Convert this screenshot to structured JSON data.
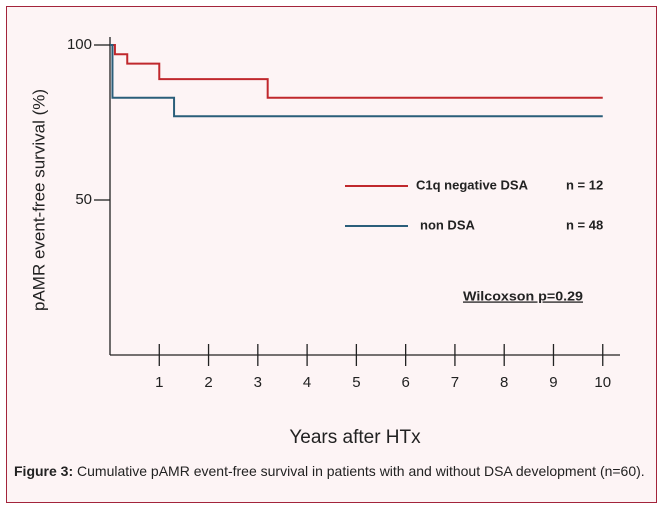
{
  "chart_data": {
    "type": "step",
    "y_label": "pAMR event-free survival (%)",
    "x_label": "Years after HTx",
    "xlim": [
      0,
      10.35
    ],
    "ylim": [
      0,
      100
    ],
    "xticks": [
      1,
      2,
      3,
      4,
      5,
      6,
      7,
      8,
      9,
      10
    ],
    "yticks": [
      50,
      100
    ],
    "series": [
      {
        "name": "C1q negative DSA",
        "n_label": "n = 12",
        "color": "#c0282d",
        "x": [
          0,
          0.1,
          0.35,
          1.0,
          3.2,
          10
        ],
        "values": [
          100,
          97,
          94,
          89,
          83,
          83
        ]
      },
      {
        "name": "non DSA",
        "n_label": "n = 48",
        "color": "#2a5e7a",
        "x": [
          0,
          0.05,
          1.3,
          10
        ],
        "values": [
          100,
          83,
          77,
          77
        ]
      }
    ],
    "annotation": "Wilcoxson  p=0.29"
  },
  "caption": {
    "label": "Figure 3:",
    "text": "Cumulative pAMR event-free survival in patients with and without DSA development (n=60)."
  }
}
